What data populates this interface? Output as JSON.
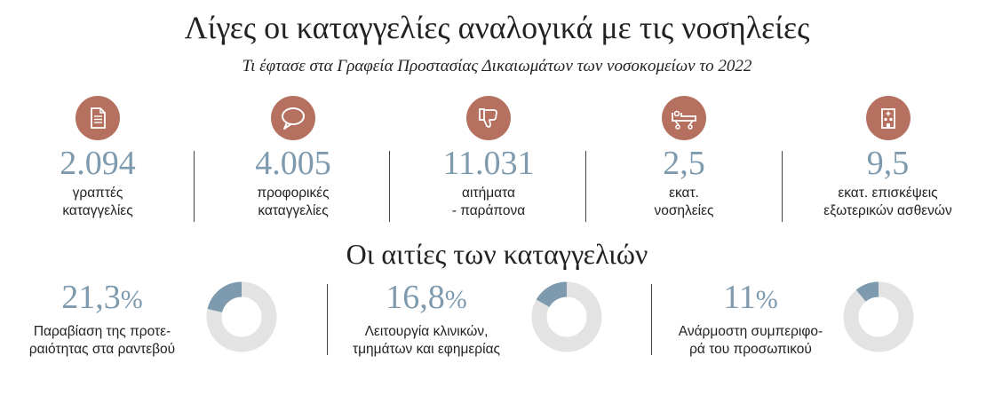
{
  "title": "Λίγες οι καταγγελίες αναλογικά με τις νοσηλείες",
  "subtitle": "Τι έφτασε στα Γραφεία Προστασίας Δικαιωμάτων των νοσοκομείων το 2022",
  "colors": {
    "accent_icon": "#b5705f",
    "value": "#7e9aae",
    "donut_fill": "#7e9aae",
    "donut_track": "#e3e3e3"
  },
  "stats": [
    {
      "icon": "document-icon",
      "value": "2.094",
      "label": "γραπτές\nκαταγγελίες"
    },
    {
      "icon": "speech-bubble-icon",
      "value": "4.005",
      "label": "προφορικές\nκαταγγελίες"
    },
    {
      "icon": "thumbs-down-icon",
      "value": "11.031",
      "label": "αιτήματα\n- παράπονα"
    },
    {
      "icon": "hospital-bed-icon",
      "value": "2,5",
      "label": "εκατ.\nνοσηλείες"
    },
    {
      "icon": "hospital-building-icon",
      "value": "9,5",
      "label": "εκατ. επισκέψεις\nεξωτερικών ασθενών"
    }
  ],
  "section_title": "Οι αιτίες των καταγγελιών",
  "chart_data": {
    "type": "pie",
    "categories": [
      "Παραβίαση της προτε-\nραιότητας στα ραντεβού",
      "Λειτουργία κλινικών,\nτμημάτων και εφημερίας",
      "Ανάρμοστη συμπεριφο-\nρά του προσωπικού"
    ],
    "values": [
      21.3,
      16.8,
      11
    ],
    "value_labels": [
      "21,3",
      "16,8",
      "11"
    ],
    "unit": "%"
  }
}
